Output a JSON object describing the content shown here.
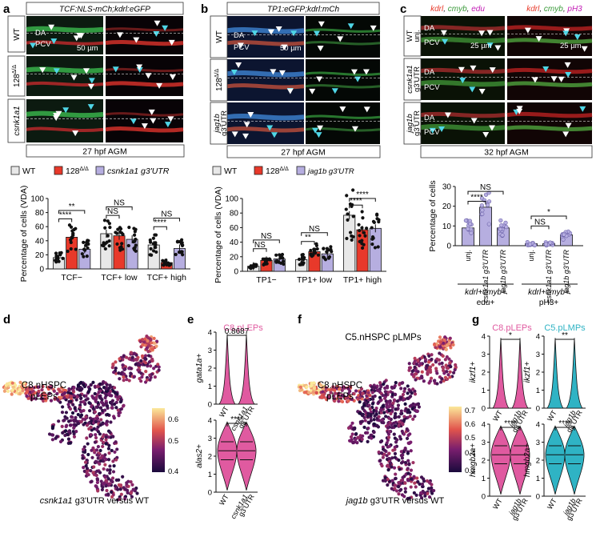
{
  "panels": {
    "a": {
      "letter": "a",
      "title": "TCF:NLS-mCh;kdrl:eGFP",
      "rows": [
        "WT",
        "128",
        "csnk1a1 g3'UTR"
      ],
      "labels": {
        "da": "DA",
        "pcv": "PCV"
      },
      "scale": "50 µm",
      "caption": "27 hpf AGM"
    },
    "b": {
      "letter": "b",
      "title": "TP1:eGFP;kdrl:mCh",
      "rows": [
        "WT",
        "128",
        "jag1b g3'UTR"
      ],
      "labels": {
        "da": "DA",
        "pcv": "PCV"
      },
      "scale": "50 µm",
      "caption": "27 hpf AGM"
    },
    "c": {
      "letter": "c",
      "title_left": [
        "kdrl",
        "cmyb",
        "edu"
      ],
      "title_right": [
        "kdrl",
        "cmyb",
        "pH3"
      ],
      "rows": [
        "WT unj.",
        "csnk1a1 g3'UTR",
        "jag1b g3'UTR"
      ],
      "labels": {
        "da": "DA",
        "pcv": "PCV"
      },
      "scale": "25 µm",
      "caption": "32 hpf AGM"
    },
    "d": {
      "letter": "d",
      "cluster_label": [
        "C8.nHSPC",
        "pLEPs"
      ],
      "caption": "csnk1a1 g3'UTR versus WT",
      "colorbar": [
        "0.6",
        "0.5",
        "0.4"
      ]
    },
    "e": {
      "letter": "e",
      "title": "C8.pLEPs"
    },
    "f": {
      "letter": "f",
      "cluster_label_top": "C5.nHSPC pLMPs",
      "cluster_label": [
        "C8.nHSPC",
        "pLEPs"
      ],
      "caption": "jag1b g3'UTR versus WT",
      "colorbar": [
        "0.7",
        "0.6",
        "0.5",
        "0.4",
        "0.3"
      ]
    },
    "g": {
      "letter": "g",
      "title_left": "C8.pLEPs",
      "title_right": "C5.pLMPs"
    }
  },
  "legend_a": [
    "WT",
    "128",
    "csnk1a1 g3'UTR"
  ],
  "legend_b": [
    "WT",
    "128",
    "jag1b g3'UTR"
  ],
  "colors": {
    "wt": "#e8e8e8",
    "mut128": "#e8392a",
    "utr": "#b6aee0",
    "pink": "#e05aa0",
    "teal": "#2fb3c4"
  },
  "chart_data": [
    {
      "type": "bar",
      "id": "a",
      "ylabel": "Percentage of cells (VDA)",
      "ylim": [
        0,
        100
      ],
      "yticks": [
        0,
        20,
        40,
        60,
        80,
        100
      ],
      "categories": [
        "TCF−",
        "TCF+ low",
        "TCF+ high"
      ],
      "series": [
        {
          "name": "WT",
          "values": [
            16,
            50,
            34
          ]
        },
        {
          "name": "128",
          "values": [
            45,
            47,
            9
          ]
        },
        {
          "name": "csnk1a1 g3'UTR",
          "values": [
            28,
            42,
            29
          ]
        }
      ],
      "annotations": [
        {
          "label": "****",
          "between": [
            0,
            1
          ],
          "group": 0
        },
        {
          "label": "**",
          "between": [
            0,
            2
          ],
          "group": 0
        },
        {
          "label": "NS",
          "between": [
            0,
            1
          ],
          "group": 1
        },
        {
          "label": "NS",
          "between": [
            0,
            2
          ],
          "group": 1
        },
        {
          "label": "****",
          "between": [
            0,
            1
          ],
          "group": 2
        },
        {
          "label": "NS",
          "between": [
            0,
            2
          ],
          "group": 2
        }
      ]
    },
    {
      "type": "bar",
      "id": "b",
      "ylabel": "Percentage of cells (VDA)",
      "ylim": [
        0,
        100
      ],
      "yticks": [
        0,
        20,
        40,
        60,
        80,
        100
      ],
      "categories": [
        "TP1−",
        "TP1+ low",
        "TP1+ high"
      ],
      "series": [
        {
          "name": "WT",
          "values": [
            7,
            16,
            77
          ]
        },
        {
          "name": "128",
          "values": [
            15,
            27,
            57
          ]
        },
        {
          "name": "jag1b g3'UTR",
          "values": [
            17,
            24,
            59
          ]
        }
      ],
      "annotations": [
        {
          "label": "NS",
          "between": [
            0,
            1
          ],
          "group": 0
        },
        {
          "label": "NS",
          "between": [
            0,
            2
          ],
          "group": 0
        },
        {
          "label": "**",
          "between": [
            0,
            1
          ],
          "group": 1
        },
        {
          "label": "NS",
          "between": [
            0,
            2
          ],
          "group": 1
        },
        {
          "label": "****",
          "between": [
            0,
            1
          ],
          "group": 2
        },
        {
          "label": "****",
          "between": [
            0,
            2
          ],
          "group": 2
        }
      ]
    },
    {
      "type": "bar",
      "id": "c",
      "ylabel": "Percentage of cells",
      "ylim": [
        0,
        30
      ],
      "yticks": [
        0,
        10,
        20,
        30
      ],
      "categories": [
        "unj.",
        "csnk1a1 g3'UTR",
        "jag1b g3'UTR",
        "unj.",
        "csnk1a1 g3'UTR",
        "jag1b g3'UTR"
      ],
      "groups": [
        "kdrl+cmyb+ edu+",
        "kdrl+cmyb+ pH3+"
      ],
      "values": [
        9,
        19.5,
        9,
        1,
        1,
        5.5
      ],
      "annotations": [
        {
          "label": "****",
          "between": [
            0,
            1
          ]
        },
        {
          "label": "NS",
          "between": [
            0,
            2
          ]
        },
        {
          "label": "NS",
          "between": [
            3,
            4
          ]
        },
        {
          "label": "*",
          "between": [
            3,
            5
          ]
        }
      ]
    },
    {
      "type": "violin",
      "id": "e",
      "panels": [
        {
          "ylabel": "gata1a+",
          "ylim": [
            0,
            4
          ],
          "yticks": [
            0,
            1,
            2,
            3,
            4
          ],
          "categories": [
            "WT",
            "csnk1a1 g3'UTR"
          ],
          "annotation": "0.8687"
        },
        {
          "ylabel": "alas2+",
          "ylim": [
            0,
            4
          ],
          "yticks": [
            0,
            1,
            2,
            3,
            4
          ],
          "categories": [
            "WT",
            "csnk1a1 g3'UTR"
          ],
          "annotation": "****"
        }
      ]
    },
    {
      "type": "violin",
      "id": "g",
      "panels": [
        {
          "ylabel": "ikzf1+",
          "ylim": [
            0,
            4
          ],
          "yticks": [
            0,
            1,
            2,
            3,
            4
          ],
          "categories": [
            "WT",
            "jag1b g3'UTR"
          ],
          "annotation": "*"
        },
        {
          "ylabel": "ikzf1+",
          "ylim": [
            0,
            4
          ],
          "yticks": [
            0,
            1,
            2,
            3,
            4
          ],
          "categories": [
            "WT",
            "jag1b g3'UTR"
          ],
          "annotation": "**"
        },
        {
          "ylabel": "hmgb2a+",
          "ylim": [
            0,
            4
          ],
          "yticks": [
            0,
            1,
            2,
            3,
            4
          ],
          "categories": [
            "WT",
            "jag1b g3'UTR"
          ],
          "annotation": "****"
        },
        {
          "ylabel": "hmgb2a+",
          "ylim": [
            0,
            4
          ],
          "yticks": [
            0,
            1,
            2,
            3,
            4
          ],
          "categories": [
            "WT",
            "jag1b g3'UTR"
          ],
          "annotation": "****"
        }
      ]
    }
  ]
}
